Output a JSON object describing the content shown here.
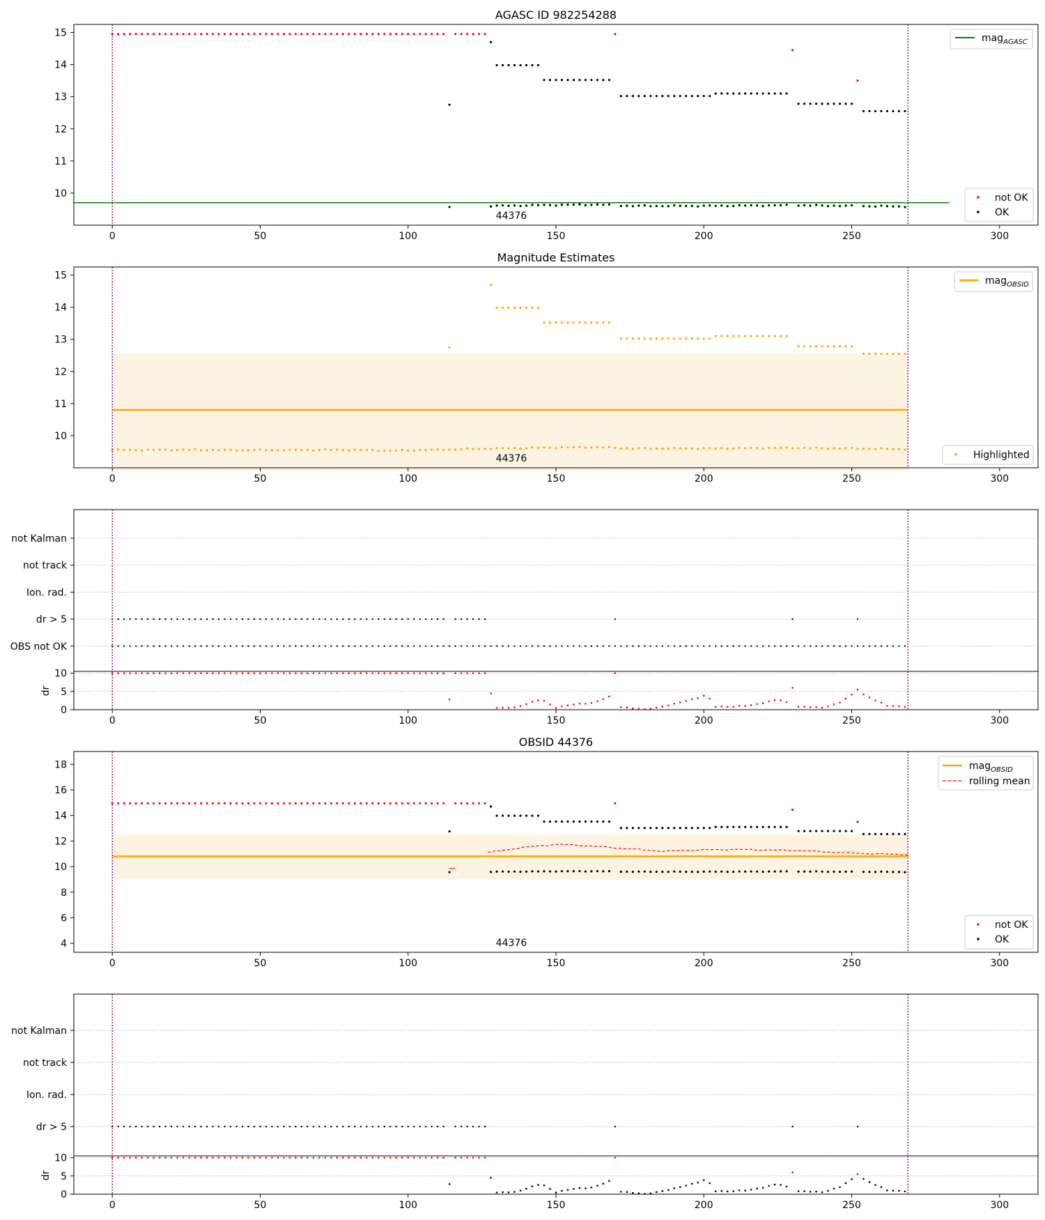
{
  "colors": {
    "ok": "#000000",
    "not_ok": "#ff0000",
    "agasc_line": "#008000",
    "obsid": "#ffa500",
    "band": "#fdf3e3",
    "boundary": "#800080",
    "grid": "#b0b0b0"
  },
  "obsid_label": "44376",
  "chart_data": [
    {
      "type": "scatter",
      "title": "AGASC ID 982254288",
      "xlim": [
        -13,
        313
      ],
      "ylim": [
        9.0,
        15.25
      ],
      "xticks": [
        0,
        50,
        100,
        150,
        200,
        250,
        300
      ],
      "yticks": [
        10,
        11,
        12,
        13,
        14,
        15
      ],
      "boundaries": [
        0,
        269
      ],
      "annotation": "44376",
      "reference_line": {
        "label": "mag",
        "subscript": "AGASC",
        "y": 9.7,
        "x": [
          -13,
          283
        ]
      },
      "legend_lines": [
        {
          "label": "mag",
          "subscript": "AGASC",
          "placement": "top-right"
        }
      ],
      "legend_points": [
        {
          "label": "not OK",
          "color_key": "not_ok"
        },
        {
          "label": "OK",
          "color_key": "ok"
        }
      ],
      "legend_points_placement": "lower-right",
      "series": [
        {
          "name": "OK",
          "color_key": "ok",
          "mode": "ok_mag"
        },
        {
          "name": "not OK",
          "color_key": "not_ok",
          "mode": "notok_mag"
        }
      ]
    },
    {
      "type": "scatter",
      "title": "Magnitude Estimates",
      "xlim": [
        -13,
        313
      ],
      "ylim": [
        9.0,
        15.25
      ],
      "xticks": [
        0,
        50,
        100,
        150,
        200,
        250,
        300
      ],
      "yticks": [
        10,
        11,
        12,
        13,
        14,
        15
      ],
      "boundaries": [
        0,
        269
      ],
      "annotation": "44376",
      "band": {
        "x": [
          0,
          269
        ],
        "y": [
          8.9,
          12.55
        ]
      },
      "reference_line": {
        "label": "mag",
        "subscript": "OBSID",
        "y": 10.8,
        "x": [
          0,
          269
        ]
      },
      "legend_lines": [
        {
          "label": "mag",
          "subscript": "OBSID",
          "placement": "top-right"
        }
      ],
      "legend_points": [
        {
          "label": "Highlighted",
          "color_key": "obsid"
        }
      ],
      "legend_points_placement": "lower-right",
      "series": [
        {
          "name": "Highlighted",
          "color_key": "obsid",
          "mode": "all_mag"
        }
      ]
    },
    {
      "type": "scatter",
      "title": "",
      "xlim": [
        -13,
        313
      ],
      "xticks": [
        0,
        50,
        100,
        150,
        200,
        250,
        300
      ],
      "boundaries": [
        0,
        269
      ],
      "flag_rows": [
        "not Kalman",
        "not track",
        "Ion. rad.",
        "dr > 5",
        "OBS not OK"
      ],
      "flag_series": [
        {
          "row": "dr > 5",
          "mode": "large_dr"
        },
        {
          "row": "OBS not OK",
          "mode": "all"
        }
      ],
      "dr_panel": {
        "ylabel": "dr",
        "yticks": [
          0,
          5,
          10
        ],
        "ylim": [
          0,
          10.5
        ],
        "clip": 10
      }
    },
    {
      "type": "scatter",
      "title": "OBSID 44376",
      "xlim": [
        -13,
        313
      ],
      "ylim": [
        3.3,
        19.0
      ],
      "xticks": [
        0,
        50,
        100,
        150,
        200,
        250,
        300
      ],
      "yticks": [
        4,
        6,
        8,
        10,
        12,
        14,
        16,
        18
      ],
      "boundaries": [
        0,
        269
      ],
      "annotation": "44376",
      "band": {
        "x": [
          0,
          269
        ],
        "y": [
          9.0,
          12.5
        ]
      },
      "reference_line": {
        "label": "mag",
        "subscript": "OBSID",
        "y": 10.8,
        "x": [
          0,
          269
        ]
      },
      "rolling_mean": {
        "label": "rolling mean",
        "x_start": 127,
        "values": [
          11.1,
          11.5,
          11.75,
          11.6,
          11.4,
          11.2,
          11.3,
          11.35,
          11.3,
          11.25,
          11.1,
          11.0,
          10.95
        ]
      },
      "legend_lines": [
        {
          "label": "mag",
          "subscript": "OBSID"
        },
        {
          "label": "rolling mean"
        }
      ],
      "legend_points": [
        {
          "label": "not OK",
          "color_key": "not_ok"
        },
        {
          "label": "OK",
          "color_key": "ok"
        }
      ],
      "legend_points_placement": "lower-right",
      "series": [
        {
          "name": "OK",
          "color_key": "ok",
          "mode": "ok_mag"
        },
        {
          "name": "not OK",
          "color_key": "not_ok",
          "mode": "notok_mag"
        }
      ]
    },
    {
      "type": "scatter",
      "title": "",
      "xlim": [
        -13,
        313
      ],
      "xticks": [
        0,
        50,
        100,
        150,
        200,
        250,
        300
      ],
      "boundaries": [
        0,
        269
      ],
      "flag_rows": [
        "not Kalman",
        "not track",
        "Ion. rad.",
        "dr > 5"
      ],
      "flag_series": [
        {
          "row": "dr > 5",
          "mode": "large_dr"
        }
      ],
      "dr_panel": {
        "ylabel": "dr",
        "yticks": [
          0,
          5,
          10
        ],
        "ylim": [
          0,
          10.5
        ],
        "clip": 10
      }
    }
  ],
  "samples": {
    "x_range": [
      0,
      269
    ],
    "spacing": 2,
    "faint_mag": 14.95,
    "notok_x": [
      [
        0,
        113
      ],
      [
        116,
        126
      ],
      [
        170,
        170
      ],
      [
        230,
        230
      ],
      [
        252,
        252
      ]
    ],
    "notok_mag": {
      "230": 14.45,
      "252": 13.5
    },
    "upper_ok_mag": [
      {
        "x": [
          114,
          114
        ],
        "mag": 12.75
      },
      {
        "x": [
          128,
          128
        ],
        "mag": 14.7
      },
      {
        "x": [
          130,
          144
        ],
        "mag": 13.98
      },
      {
        "x": [
          146,
          168
        ],
        "mag": 13.52
      },
      {
        "x": [
          172,
          202
        ],
        "mag": 13.02
      },
      {
        "x": [
          204,
          228
        ],
        "mag": 13.1
      },
      {
        "x": [
          232,
          250
        ],
        "mag": 12.78
      },
      {
        "x": [
          254,
          269
        ],
        "mag": 12.55
      }
    ],
    "lower_mag_profile": [
      [
        0,
        9.55
      ],
      [
        20,
        9.56
      ],
      [
        40,
        9.55
      ],
      [
        60,
        9.55
      ],
      [
        80,
        9.56
      ],
      [
        95,
        9.53
      ],
      [
        110,
        9.56
      ],
      [
        130,
        9.6
      ],
      [
        150,
        9.63
      ],
      [
        165,
        9.64
      ],
      [
        175,
        9.6
      ],
      [
        200,
        9.6
      ],
      [
        230,
        9.62
      ],
      [
        269,
        9.58
      ]
    ],
    "dr_profile": [
      [
        0,
        1.0
      ],
      [
        6,
        2.0
      ],
      [
        10,
        1.2
      ],
      [
        25,
        1.8
      ],
      [
        34,
        3.0
      ],
      [
        38,
        1.7
      ],
      [
        50,
        1.5
      ],
      [
        60,
        1.2
      ],
      [
        80,
        2.2
      ],
      [
        86,
        0.3
      ],
      [
        100,
        1.5
      ],
      [
        110,
        1.0
      ],
      [
        114,
        2.8
      ],
      [
        118,
        1.1
      ],
      [
        126,
        1.3
      ],
      [
        128,
        4.6
      ],
      [
        130,
        0.4
      ],
      [
        136,
        0.6
      ],
      [
        145,
        2.8
      ],
      [
        150,
        0.6
      ],
      [
        155,
        1.3
      ],
      [
        163,
        2.0
      ],
      [
        168,
        3.5
      ],
      [
        172,
        0.8
      ],
      [
        180,
        0.0
      ],
      [
        190,
        1.5
      ],
      [
        201,
        4.0
      ],
      [
        204,
        0.8
      ],
      [
        215,
        1.0
      ],
      [
        225,
        2.8
      ],
      [
        232,
        0.9
      ],
      [
        240,
        0.5
      ],
      [
        246,
        2.0
      ],
      [
        252,
        5.0
      ],
      [
        256,
        3.4
      ],
      [
        262,
        1.0
      ],
      [
        269,
        0.9
      ]
    ],
    "dr_outliers": {
      "170": 10.0,
      "230": 6.0,
      "252": 5.5
    }
  }
}
